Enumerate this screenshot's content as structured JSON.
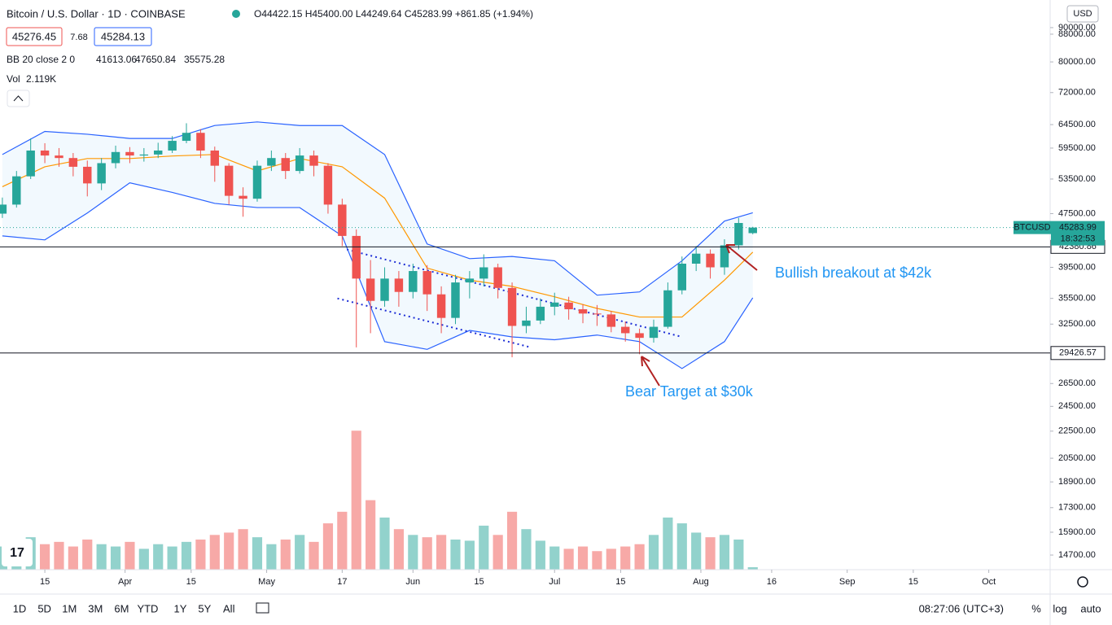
{
  "chart_data": {
    "type": "candlestick",
    "title": "Bitcoin / U.S. Dollar · 1D · COINBASE",
    "ohlc_text": "O44422.15 H45400.00 L44249.64 C45283.99 +861.85 (+1.94%)",
    "bid": 45276.45,
    "spread": 7.68,
    "ask": 45284.13,
    "bb_label": "BB 20 close 2 0",
    "vol_label": "Vol",
    "vol_last_label": "2.119K",
    "symbol": "BTCUSD",
    "countdown": "18:32:53",
    "currency": "USD",
    "log_scale": true,
    "grid": false,
    "up_color": "#26a69a",
    "down_color": "#ef5350",
    "x": [
      5,
      8,
      11,
      14,
      17,
      20,
      23,
      26,
      29,
      32,
      35,
      38,
      41,
      44,
      47,
      50,
      53,
      56,
      59,
      62,
      65,
      68,
      71,
      74,
      77,
      80,
      83,
      86,
      89,
      92,
      95,
      98,
      101,
      104,
      107,
      110,
      113,
      116,
      119,
      122,
      125,
      128,
      131,
      134,
      137,
      140,
      143,
      146,
      149,
      152,
      155,
      158,
      161,
      164
    ],
    "open": [
      47500,
      49000,
      54000,
      59000,
      58000,
      57500,
      55800,
      52700,
      56500,
      58700,
      58000,
      58200,
      59000,
      61000,
      62700,
      59000,
      56000,
      50500,
      50000,
      56000,
      57500,
      55000,
      58000,
      56000,
      49000,
      44000,
      38000,
      35200,
      38000,
      36300,
      39000,
      36000,
      33200,
      37500,
      38000,
      39500,
      36800,
      32300,
      32900,
      34500,
      35000,
      34200,
      33700,
      33600,
      32200,
      31500,
      31000,
      32200,
      36500,
      40000,
      41400,
      39500,
      42600,
      44422.15
    ],
    "high": [
      50200,
      55000,
      61500,
      60500,
      59500,
      58500,
      57000,
      57500,
      60000,
      59700,
      59500,
      60600,
      62000,
      64800,
      63500,
      59800,
      56500,
      52000,
      57000,
      59000,
      58500,
      59500,
      59000,
      56500,
      50000,
      45000,
      40500,
      39500,
      39000,
      40000,
      39800,
      37000,
      38500,
      39000,
      41300,
      40000,
      37500,
      34500,
      35500,
      36200,
      35700,
      34800,
      34700,
      34000,
      32800,
      32000,
      33000,
      37500,
      41000,
      42500,
      42000,
      43500,
      46800,
      45400
    ],
    "low": [
      46800,
      48500,
      53500,
      56500,
      55800,
      54000,
      50400,
      51500,
      55500,
      56500,
      56800,
      57500,
      58500,
      60500,
      57500,
      53000,
      49000,
      47000,
      49500,
      55000,
      53500,
      54500,
      54000,
      47500,
      42500,
      30000,
      31500,
      34500,
      34500,
      35500,
      34000,
      31500,
      32500,
      35500,
      37000,
      35500,
      29000,
      31500,
      32500,
      33500,
      33000,
      32600,
      32300,
      31600,
      30600,
      29300,
      30500,
      32000,
      36000,
      39000,
      38000,
      38500,
      42000,
      44249.64
    ],
    "close": [
      49000,
      54000,
      59000,
      58000,
      57500,
      55800,
      52700,
      56500,
      58700,
      58000,
      58200,
      59000,
      61000,
      62700,
      59000,
      56000,
      50500,
      50000,
      56000,
      57500,
      55000,
      58000,
      56000,
      49000,
      44000,
      38000,
      35200,
      38000,
      36300,
      39000,
      36000,
      33200,
      37500,
      38000,
      39500,
      36800,
      32300,
      32900,
      34500,
      35000,
      34200,
      33700,
      33600,
      32200,
      31500,
      31000,
      32200,
      36500,
      40000,
      41400,
      39500,
      42600,
      46000,
      45283.99
    ],
    "volume": [
      20,
      25,
      28,
      22,
      24,
      20,
      26,
      22,
      20,
      24,
      18,
      22,
      20,
      24,
      26,
      30,
      32,
      35,
      28,
      22,
      26,
      30,
      24,
      40,
      50,
      120,
      60,
      45,
      35,
      30,
      28,
      30,
      26,
      25,
      38,
      30,
      50,
      35,
      25,
      20,
      18,
      20,
      16,
      18,
      20,
      22,
      30,
      45,
      40,
      32,
      28,
      30,
      26,
      2.119
    ],
    "vol_ylim": [
      0,
      130
    ],
    "bands": {
      "x": [
        5,
        14,
        23,
        32,
        41,
        50,
        59,
        68,
        77,
        86,
        95,
        104,
        113,
        122,
        131,
        140,
        149,
        158,
        164
      ],
      "upper": {
        "color": "#2962ff",
        "values": [
          58200,
          63000,
          62400,
          61500,
          61500,
          64300,
          65100,
          64300,
          64300,
          58200,
          42800,
          40700,
          41000,
          40400,
          35900,
          36300,
          40400,
          46300,
          47650.84
        ]
      },
      "middle": {
        "color": "#ff9800",
        "values": [
          52100,
          55800,
          57400,
          57400,
          57900,
          58200,
          55000,
          57400,
          55800,
          50100,
          39400,
          37800,
          37000,
          35700,
          34300,
          33300,
          33300,
          37800,
          41613.06
        ]
      },
      "lower": {
        "color": "#2962ff",
        "values": [
          44000,
          43400,
          47600,
          52800,
          51100,
          49200,
          48500,
          48500,
          44000,
          30600,
          29800,
          31800,
          31100,
          30800,
          31300,
          30600,
          27900,
          30600,
          35575.28
        ]
      }
    },
    "hlines": [
      42380.86,
      29426.57
    ],
    "trendlines": [
      {
        "x": [
          78,
          149
        ],
        "values": [
          42000,
          31100
        ]
      },
      {
        "x": [
          76,
          117
        ],
        "values": [
          35500,
          30000
        ]
      }
    ],
    "annotations": [
      "Bullish breakout at $42k",
      "Bear Target at $30k"
    ],
    "xlim": [
      4.5,
      227
    ],
    "xticks": [
      {
        "value": 14,
        "label": "15"
      },
      {
        "value": 31,
        "label": "Apr"
      },
      {
        "value": 45,
        "label": "15"
      },
      {
        "value": 61,
        "label": "May"
      },
      {
        "value": 77,
        "label": "17"
      },
      {
        "value": 92,
        "label": "Jun"
      },
      {
        "value": 106,
        "label": "15"
      },
      {
        "value": 122,
        "label": "Jul"
      },
      {
        "value": 136,
        "label": "15"
      },
      {
        "value": 153,
        "label": "Aug"
      },
      {
        "value": 168,
        "label": "16"
      },
      {
        "value": 184,
        "label": "Sep"
      },
      {
        "value": 198,
        "label": "15"
      },
      {
        "value": 214,
        "label": "Oct"
      }
    ],
    "ylim": [
      13980,
      98960
    ],
    "yticks": [
      {
        "value": 90000,
        "label": "90000.00"
      },
      {
        "value": 88000,
        "label": "88000.00"
      },
      {
        "value": 80000,
        "label": "80000.00"
      },
      {
        "value": 72000,
        "label": "72000.00"
      },
      {
        "value": 64500,
        "label": "64500.00"
      },
      {
        "value": 59500,
        "label": "59500.00"
      },
      {
        "value": 53500,
        "label": "53500.00"
      },
      {
        "value": 47500,
        "label": "47500.00"
      },
      {
        "value": 39500,
        "label": "39500.00"
      },
      {
        "value": 35500,
        "label": "35500.00"
      },
      {
        "value": 32500,
        "label": "32500.00"
      },
      {
        "value": 26500,
        "label": "26500.00"
      },
      {
        "value": 24500,
        "label": "24500.00"
      },
      {
        "value": 22500,
        "label": "22500.00"
      },
      {
        "value": 20500,
        "label": "20500.00"
      },
      {
        "value": 18900,
        "label": "18900.00"
      },
      {
        "value": 17300,
        "label": "17300.00"
      },
      {
        "value": 15900,
        "label": "15900.00"
      },
      {
        "value": 14700,
        "label": "14700.00"
      }
    ]
  },
  "ui": {
    "timeframes": [
      "1D",
      "5D",
      "1M",
      "3M",
      "6M",
      "YTD",
      "1Y",
      "5Y",
      "All"
    ],
    "clock": "08:27:06 (UTC+3)",
    "percent": "%",
    "log": "log",
    "auto": "auto"
  }
}
